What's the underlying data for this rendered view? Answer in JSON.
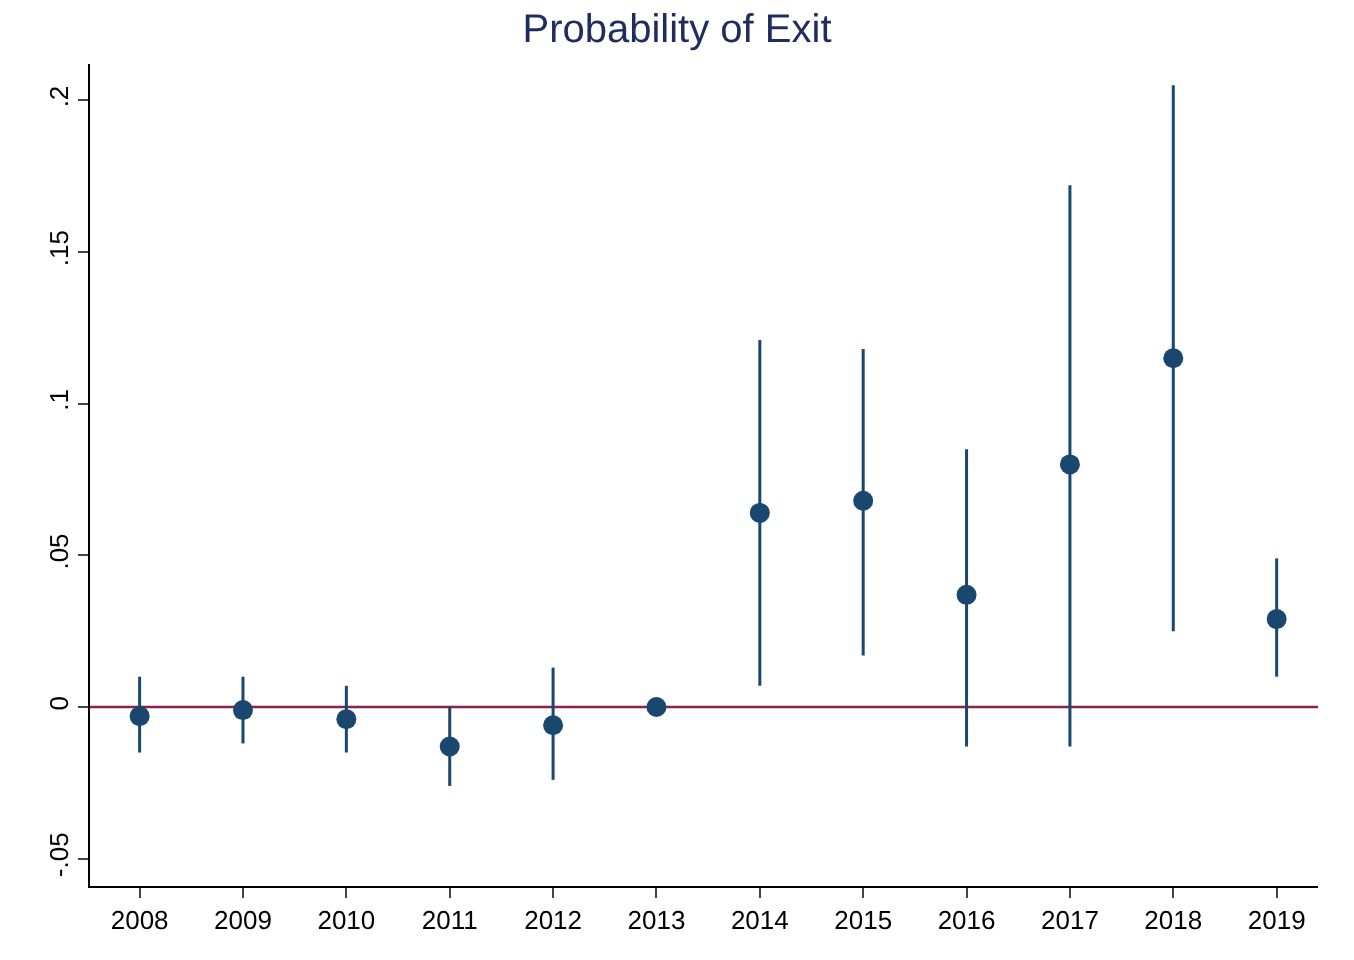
{
  "chart_data": {
    "type": "scatter",
    "title": "Probability of Exit",
    "x": [
      2008,
      2009,
      2010,
      2011,
      2012,
      2013,
      2014,
      2015,
      2016,
      2017,
      2018,
      2019
    ],
    "series": [
      {
        "color": "#1a476f",
        "values": [
          -0.003,
          -0.001,
          -0.004,
          -0.013,
          -0.006,
          0,
          0.064,
          0.068,
          0.037,
          0.08,
          0.115,
          0.029
        ],
        "errors": [
          [
            -0.015,
            0.01
          ],
          [
            -0.012,
            0.01
          ],
          [
            -0.015,
            0.007
          ],
          [
            -0.026,
            0
          ],
          [
            -0.024,
            0.013
          ],
          null,
          [
            0.007,
            0.121
          ],
          [
            0.017,
            0.118
          ],
          [
            -0.013,
            0.085
          ],
          [
            -0.013,
            0.172
          ],
          [
            0.025,
            0.205
          ],
          [
            0.01,
            0.049
          ]
        ]
      }
    ],
    "xlim": [
      2007.52,
      2019.4
    ],
    "xticks": [
      2008,
      2009,
      2010,
      2011,
      2012,
      2013,
      2014,
      2015,
      2016,
      2017,
      2018,
      2019
    ],
    "ylim": [
      -0.059,
      0.212
    ],
    "yticks": [
      {
        "value": -0.05,
        "label": "-.05"
      },
      {
        "value": 0,
        "label": "0"
      },
      {
        "value": 0.05,
        "label": ".05"
      },
      {
        "value": 0.1,
        "label": ".1"
      },
      {
        "value": 0.15,
        "label": ".15"
      },
      {
        "value": 0.2,
        "label": ".2"
      }
    ],
    "ref_lines": [
      {
        "axis": "y",
        "value": 0,
        "color": "#8b2346"
      }
    ],
    "marker": "circle",
    "grid": false,
    "legend": false
  }
}
